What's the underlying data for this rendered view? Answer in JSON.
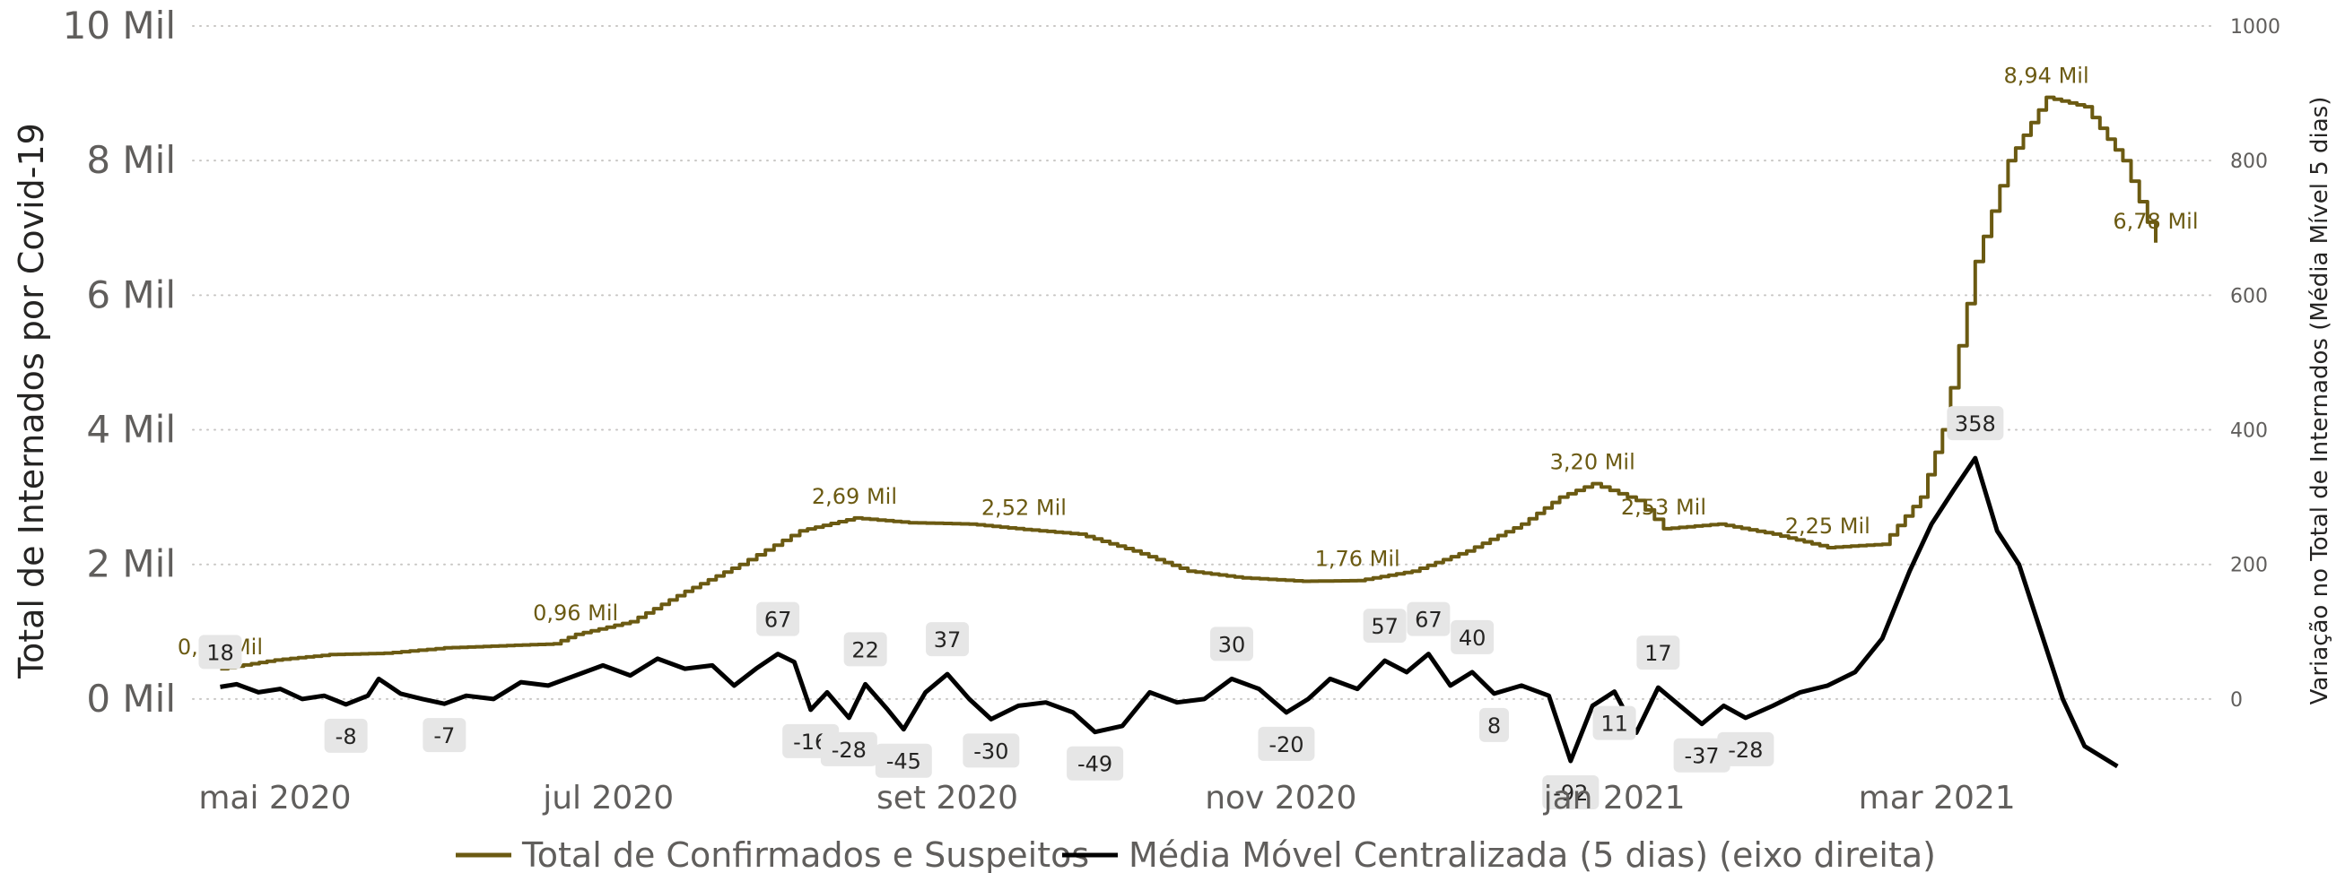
{
  "chart_data": {
    "type": "line",
    "colors": {
      "total": "#6b5a12",
      "media": "#000000"
    },
    "y_left": {
      "title": "Total de Internados por Covid-19",
      "ylim": [
        -1000,
        10000
      ],
      "ticks": [
        {
          "value": 0,
          "label": "0 Mil"
        },
        {
          "value": 2000,
          "label": "2 Mil"
        },
        {
          "value": 4000,
          "label": "4 Mil"
        },
        {
          "value": 6000,
          "label": "6 Mil"
        },
        {
          "value": 8000,
          "label": "8 Mil"
        },
        {
          "value": 10000,
          "label": "10 Mil"
        }
      ]
    },
    "y_right": {
      "title": "Variação no Total de Internados (Média Mível 5 dias)",
      "ylim": [
        -100,
        1000
      ],
      "ticks": [
        {
          "value": 0,
          "label": "0"
        },
        {
          "value": 200,
          "label": "200"
        },
        {
          "value": 400,
          "label": "400"
        },
        {
          "value": 600,
          "label": "600"
        },
        {
          "value": 800,
          "label": "800"
        },
        {
          "value": 1000,
          "label": "1000"
        }
      ]
    },
    "x_axis": {
      "range": [
        "2020-04-16",
        "2021-04-21"
      ],
      "ticks": [
        {
          "date": "2020-05-01",
          "label": "mai 2020"
        },
        {
          "date": "2020-07-01",
          "label": "jul 2020"
        },
        {
          "date": "2020-09-01",
          "label": "set 2020"
        },
        {
          "date": "2020-11-01",
          "label": "nov 2020"
        },
        {
          "date": "2021-01-01",
          "label": "jan 2021"
        },
        {
          "date": "2021-03-01",
          "label": "mar 2021"
        }
      ]
    },
    "grid": true,
    "legend": {
      "position": "bottom",
      "items": [
        {
          "label": "Total de Confirmados e Suspeitos",
          "series": "total"
        },
        {
          "label": "Média Móvel Centralizada (5 dias) (eixo direita)",
          "series": "media"
        }
      ]
    },
    "series": [
      {
        "name": "Total de Confirmados e Suspeitos",
        "key": "total",
        "axis": "left",
        "step": true,
        "points": [
          [
            "2020-04-21",
            450
          ],
          [
            "2020-05-01",
            580
          ],
          [
            "2020-05-11",
            660
          ],
          [
            "2020-05-21",
            680
          ],
          [
            "2020-06-01",
            760
          ],
          [
            "2020-06-11",
            790
          ],
          [
            "2020-06-21",
            820
          ],
          [
            "2020-06-25",
            960
          ],
          [
            "2020-07-05",
            1150
          ],
          [
            "2020-07-15",
            1600
          ],
          [
            "2020-07-25",
            2000
          ],
          [
            "2020-08-05",
            2500
          ],
          [
            "2020-08-15",
            2690
          ],
          [
            "2020-08-25",
            2620
          ],
          [
            "2020-09-05",
            2600
          ],
          [
            "2020-09-15",
            2520
          ],
          [
            "2020-09-25",
            2450
          ],
          [
            "2020-10-05",
            2200
          ],
          [
            "2020-10-15",
            1900
          ],
          [
            "2020-10-25",
            1800
          ],
          [
            "2020-11-05",
            1750
          ],
          [
            "2020-11-15",
            1760
          ],
          [
            "2020-11-25",
            1900
          ],
          [
            "2020-12-05",
            2200
          ],
          [
            "2020-12-15",
            2600
          ],
          [
            "2020-12-22",
            3000
          ],
          [
            "2020-12-28",
            3200
          ],
          [
            "2021-01-05",
            2950
          ],
          [
            "2021-01-10",
            2530
          ],
          [
            "2021-01-20",
            2600
          ],
          [
            "2021-01-30",
            2450
          ],
          [
            "2021-02-09",
            2250
          ],
          [
            "2021-02-19",
            2300
          ],
          [
            "2021-02-26",
            3000
          ],
          [
            "2021-03-02",
            4000
          ],
          [
            "2021-03-08",
            6500
          ],
          [
            "2021-03-14",
            8000
          ],
          [
            "2021-03-21",
            8940
          ],
          [
            "2021-03-28",
            8800
          ],
          [
            "2021-04-04",
            8000
          ],
          [
            "2021-04-10",
            6780
          ]
        ]
      },
      {
        "name": "Média Móvel Centralizada (5 dias) (eixo direita)",
        "key": "media",
        "axis": "right",
        "step": false,
        "points": [
          [
            "2020-04-21",
            18
          ],
          [
            "2020-04-24",
            22
          ],
          [
            "2020-04-28",
            10
          ],
          [
            "2020-05-02",
            15
          ],
          [
            "2020-05-06",
            0
          ],
          [
            "2020-05-10",
            5
          ],
          [
            "2020-05-14",
            -8
          ],
          [
            "2020-05-18",
            5
          ],
          [
            "2020-05-20",
            30
          ],
          [
            "2020-05-24",
            8
          ],
          [
            "2020-05-28",
            0
          ],
          [
            "2020-06-01",
            -7
          ],
          [
            "2020-06-05",
            5
          ],
          [
            "2020-06-10",
            0
          ],
          [
            "2020-06-15",
            25
          ],
          [
            "2020-06-20",
            20
          ],
          [
            "2020-06-25",
            35
          ],
          [
            "2020-06-30",
            50
          ],
          [
            "2020-07-05",
            35
          ],
          [
            "2020-07-10",
            60
          ],
          [
            "2020-07-15",
            45
          ],
          [
            "2020-07-20",
            50
          ],
          [
            "2020-07-24",
            20
          ],
          [
            "2020-07-28",
            45
          ],
          [
            "2020-08-01",
            67
          ],
          [
            "2020-08-04",
            55
          ],
          [
            "2020-08-07",
            -16
          ],
          [
            "2020-08-10",
            10
          ],
          [
            "2020-08-14",
            -28
          ],
          [
            "2020-08-17",
            22
          ],
          [
            "2020-08-21",
            -15
          ],
          [
            "2020-08-24",
            -45
          ],
          [
            "2020-08-28",
            10
          ],
          [
            "2020-09-01",
            37
          ],
          [
            "2020-09-05",
            0
          ],
          [
            "2020-09-09",
            -30
          ],
          [
            "2020-09-14",
            -10
          ],
          [
            "2020-09-19",
            -5
          ],
          [
            "2020-09-24",
            -20
          ],
          [
            "2020-09-28",
            -49
          ],
          [
            "2020-10-03",
            -40
          ],
          [
            "2020-10-08",
            10
          ],
          [
            "2020-10-13",
            -5
          ],
          [
            "2020-10-18",
            0
          ],
          [
            "2020-10-23",
            30
          ],
          [
            "2020-10-28",
            15
          ],
          [
            "2020-11-02",
            -20
          ],
          [
            "2020-11-06",
            0
          ],
          [
            "2020-11-10",
            30
          ],
          [
            "2020-11-15",
            15
          ],
          [
            "2020-11-20",
            57
          ],
          [
            "2020-11-24",
            40
          ],
          [
            "2020-11-28",
            67
          ],
          [
            "2020-12-02",
            20
          ],
          [
            "2020-12-06",
            40
          ],
          [
            "2020-12-10",
            8
          ],
          [
            "2020-12-15",
            20
          ],
          [
            "2020-12-20",
            5
          ],
          [
            "2020-12-24",
            -92
          ],
          [
            "2020-12-28",
            -10
          ],
          [
            "2021-01-01",
            11
          ],
          [
            "2021-01-05",
            -50
          ],
          [
            "2021-01-09",
            17
          ],
          [
            "2021-01-13",
            -10
          ],
          [
            "2021-01-17",
            -37
          ],
          [
            "2021-01-21",
            -10
          ],
          [
            "2021-01-25",
            -28
          ],
          [
            "2021-01-30",
            -10
          ],
          [
            "2021-02-04",
            10
          ],
          [
            "2021-02-09",
            20
          ],
          [
            "2021-02-14",
            40
          ],
          [
            "2021-02-19",
            90
          ],
          [
            "2021-02-24",
            190
          ],
          [
            "2021-02-28",
            260
          ],
          [
            "2021-03-04",
            310
          ],
          [
            "2021-03-08",
            358
          ],
          [
            "2021-03-12",
            250
          ],
          [
            "2021-03-16",
            200
          ],
          [
            "2021-03-20",
            100
          ],
          [
            "2021-03-24",
            0
          ],
          [
            "2021-03-28",
            -70
          ],
          [
            "2021-04-03",
            -100
          ]
        ]
      }
    ],
    "data_labels": [
      {
        "series": "total",
        "date": "2020-04-21",
        "value": 450,
        "text": "0,45 Mil"
      },
      {
        "series": "total",
        "date": "2020-06-25",
        "value": 960,
        "text": "0,96 Mil"
      },
      {
        "series": "total",
        "date": "2020-08-15",
        "value": 2690,
        "text": "2,69 Mil"
      },
      {
        "series": "total",
        "date": "2020-09-15",
        "value": 2520,
        "text": "2,52 Mil"
      },
      {
        "series": "total",
        "date": "2020-11-15",
        "value": 1760,
        "text": "1,76 Mil"
      },
      {
        "series": "total",
        "date": "2020-12-28",
        "value": 3200,
        "text": "3,20 Mil"
      },
      {
        "series": "total",
        "date": "2021-01-10",
        "value": 2530,
        "text": "2,53 Mil"
      },
      {
        "series": "total",
        "date": "2021-02-09",
        "value": 2250,
        "text": "2,25 Mil"
      },
      {
        "series": "total",
        "date": "2021-03-21",
        "value": 8940,
        "text": "8,94 Mil"
      },
      {
        "series": "total",
        "date": "2021-04-10",
        "value": 6780,
        "text": "6,78 Mil"
      },
      {
        "series": "media",
        "date": "2020-04-21",
        "value": 18,
        "text": "18"
      },
      {
        "series": "media",
        "date": "2020-05-14",
        "value": -8,
        "text": "-8"
      },
      {
        "series": "media",
        "date": "2020-06-01",
        "value": -7,
        "text": "-7"
      },
      {
        "series": "media",
        "date": "2020-08-01",
        "value": 67,
        "text": "67"
      },
      {
        "series": "media",
        "date": "2020-08-07",
        "value": -16,
        "text": "-16"
      },
      {
        "series": "media",
        "date": "2020-08-14",
        "value": -28,
        "text": "-28"
      },
      {
        "series": "media",
        "date": "2020-08-17",
        "value": 22,
        "text": "22"
      },
      {
        "series": "media",
        "date": "2020-08-24",
        "value": -45,
        "text": "-45"
      },
      {
        "series": "media",
        "date": "2020-09-01",
        "value": 37,
        "text": "37"
      },
      {
        "series": "media",
        "date": "2020-09-09",
        "value": -30,
        "text": "-30"
      },
      {
        "series": "media",
        "date": "2020-09-28",
        "value": -49,
        "text": "-49"
      },
      {
        "series": "media",
        "date": "2020-10-23",
        "value": 30,
        "text": "30"
      },
      {
        "series": "media",
        "date": "2020-11-02",
        "value": -20,
        "text": "-20"
      },
      {
        "series": "media",
        "date": "2020-11-20",
        "value": 57,
        "text": "57"
      },
      {
        "series": "media",
        "date": "2020-11-28",
        "value": 67,
        "text": "67"
      },
      {
        "series": "media",
        "date": "2020-12-06",
        "value": 40,
        "text": "40"
      },
      {
        "series": "media",
        "date": "2020-12-10",
        "value": 8,
        "text": "8"
      },
      {
        "series": "media",
        "date": "2020-12-24",
        "value": -92,
        "text": "-92"
      },
      {
        "series": "media",
        "date": "2021-01-01",
        "value": 11,
        "text": "11"
      },
      {
        "series": "media",
        "date": "2021-01-09",
        "value": 17,
        "text": "17"
      },
      {
        "series": "media",
        "date": "2021-01-17",
        "value": -37,
        "text": "-37"
      },
      {
        "series": "media",
        "date": "2021-01-25",
        "value": -28,
        "text": "-28"
      },
      {
        "series": "media",
        "date": "2021-03-08",
        "value": 358,
        "text": "358"
      }
    ]
  }
}
